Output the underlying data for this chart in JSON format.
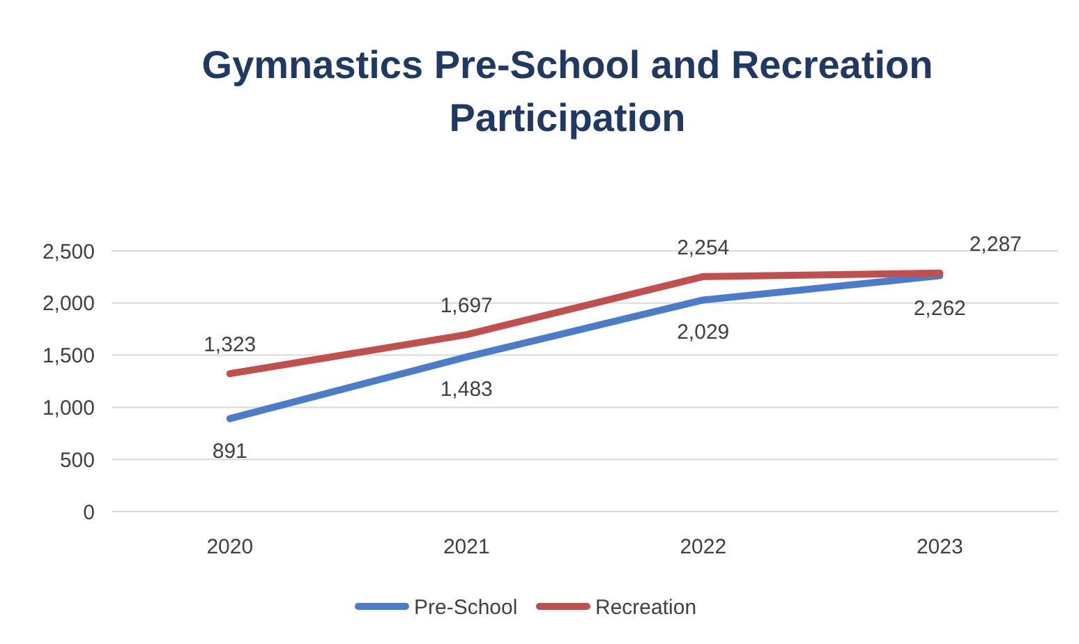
{
  "chart_data": {
    "type": "line",
    "title": "Gymnastics Pre-School and Recreation Participation",
    "categories": [
      "2020",
      "2021",
      "2022",
      "2023"
    ],
    "series": [
      {
        "name": "Pre-School",
        "color": "#4a7cc9",
        "values": [
          891,
          1483,
          2029,
          2262
        ],
        "value_labels": [
          "891",
          "1,483",
          "2,029",
          "2,262"
        ]
      },
      {
        "name": "Recreation",
        "color": "#c0504d",
        "values": [
          1323,
          1697,
          2254,
          2287
        ],
        "value_labels": [
          "1,323",
          "1,697",
          "2,254",
          "2,287"
        ]
      }
    ],
    "ylim": [
      0,
      2500
    ],
    "yticks": [
      {
        "value": 0,
        "label": "0"
      },
      {
        "value": 500,
        "label": "500"
      },
      {
        "value": 1000,
        "label": "1,000"
      },
      {
        "value": 1500,
        "label": "1,500"
      },
      {
        "value": 2000,
        "label": "2,000"
      },
      {
        "value": 2500,
        "label": "2,500"
      }
    ],
    "grid": "y",
    "legend": "bottom",
    "line_style": "solid",
    "marker": "none"
  }
}
